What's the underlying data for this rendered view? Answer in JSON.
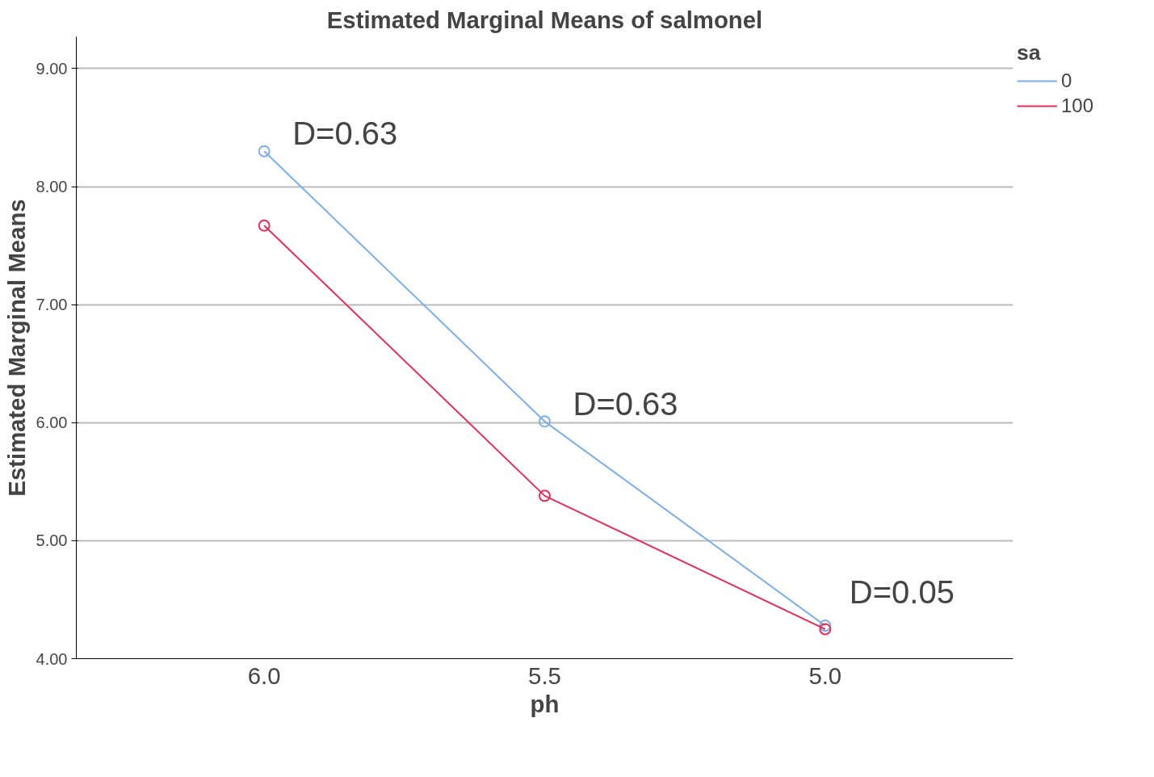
{
  "chart_data": {
    "type": "line",
    "title": "Estimated Marginal Means of salmonel",
    "xlabel": "ph",
    "ylabel": "Estimated Marginal Means",
    "legend_title": "sa",
    "categories": [
      "6.0",
      "5.5",
      "5.0"
    ],
    "series": [
      {
        "name": "0",
        "color": "#7eaee8",
        "values": [
          8.3,
          6.01,
          4.28
        ]
      },
      {
        "name": "100",
        "color": "#e0305a",
        "values": [
          7.67,
          5.38,
          4.25
        ]
      }
    ],
    "ylim": [
      4.0,
      9.27
    ],
    "yticks": [
      {
        "value": 4,
        "label": "4.00"
      },
      {
        "value": 5,
        "label": "5.00"
      },
      {
        "value": 6,
        "label": "6.00"
      },
      {
        "value": 7,
        "label": "7.00"
      },
      {
        "value": 8,
        "label": "8.00"
      },
      {
        "value": 9,
        "label": "9.00"
      }
    ],
    "grid": "y",
    "legend": "top right",
    "marker": "circle",
    "line_style": "solid",
    "annotations": [
      {
        "text": "D=0.63",
        "x": "6.0",
        "y": 8.3
      },
      {
        "text": "D=0.63",
        "x": "5.5",
        "y": 6.01
      },
      {
        "text": "D=0.05",
        "x": "5.0",
        "y": 4.28
      }
    ]
  }
}
